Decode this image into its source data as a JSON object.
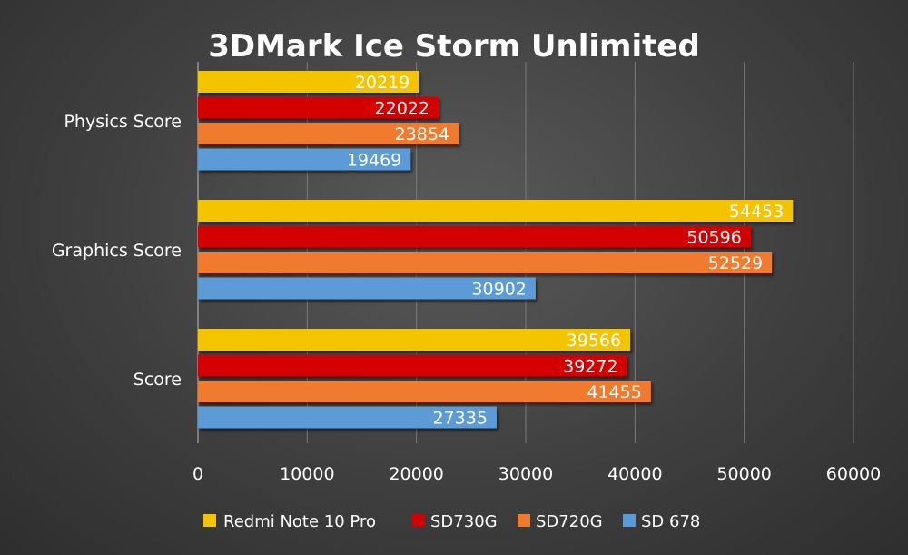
{
  "chart_data": {
    "type": "bar",
    "orientation": "horizontal",
    "title": "3DMark Ice Storm Unlimited",
    "categories": [
      "Physics Score",
      "Graphics Score",
      "Score"
    ],
    "series": [
      {
        "name": "Redmi Note 10 Pro",
        "color": "#f5c400",
        "values": [
          20219,
          54453,
          39566
        ]
      },
      {
        "name": "SD730G",
        "color": "#d40000",
        "values": [
          22022,
          50596,
          39272
        ]
      },
      {
        "name": "SD720G",
        "color": "#f07a2e",
        "values": [
          23854,
          52529,
          41455
        ]
      },
      {
        "name": "SD 678",
        "color": "#5b9bd5",
        "values": [
          19469,
          30902,
          27335
        ]
      }
    ],
    "data_labels": [
      [
        "20219",
        "54453",
        "39566"
      ],
      [
        "22022",
        "50596",
        "39272"
      ],
      [
        "23854",
        "52529",
        "41455"
      ],
      [
        "19469",
        "30902",
        "27335"
      ]
    ],
    "xlim": [
      0,
      60000
    ],
    "x_ticks": [
      0,
      10000,
      20000,
      30000,
      40000,
      50000,
      60000
    ],
    "x_tick_labels": [
      "0",
      "10000",
      "20000",
      "30000",
      "40000",
      "50000",
      "60000"
    ],
    "xlabel": "",
    "ylabel": "",
    "grid": "vertical",
    "legend_position": "bottom"
  }
}
